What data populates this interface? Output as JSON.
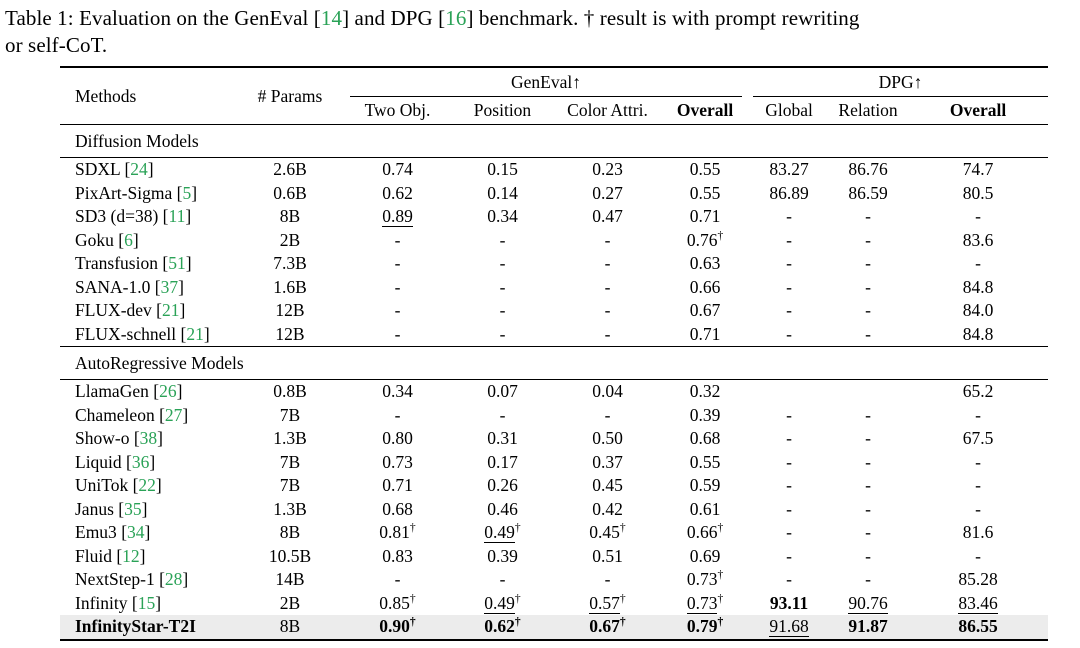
{
  "colors": {
    "citation_green": "#2aa257",
    "highlight_row_bg": "#ececec",
    "rule_color": "#000000"
  },
  "caption": {
    "segments": [
      {
        "t": "Table 1: Evaluation on the GenEval ["
      },
      {
        "t": "14",
        "green": true
      },
      {
        "t": "] and DPG ["
      },
      {
        "t": "16",
        "green": true
      },
      {
        "t": "] benchmark. † result is with prompt rewriting"
      },
      {
        "t": "or self-CoT.",
        "br": true
      }
    ]
  },
  "table": {
    "header": {
      "methods": "Methods",
      "params": "# Params",
      "groups": [
        {
          "label": "GenEval↑"
        },
        {
          "label": "DPG↑"
        }
      ],
      "subcolumns": [
        {
          "label": "Two Obj."
        },
        {
          "label": "Position"
        },
        {
          "label": "Color Attri."
        },
        {
          "label": "Overall",
          "b": true
        },
        {
          "label": "Global"
        },
        {
          "label": "Relation"
        },
        {
          "label": "Overall",
          "b": true
        }
      ]
    },
    "sections": [
      {
        "title": "Diffusion Models",
        "rows": [
          {
            "method": "SDXL",
            "cite": "24",
            "params": "2.6B",
            "values": [
              {
                "v": "0.74"
              },
              {
                "v": "0.15"
              },
              {
                "v": "0.23"
              },
              {
                "v": "0.55"
              },
              {
                "v": "83.27"
              },
              {
                "v": "86.76"
              },
              {
                "v": "74.7"
              }
            ]
          },
          {
            "method": "PixArt-Sigma",
            "cite": "5",
            "params": "0.6B",
            "values": [
              {
                "v": "0.62"
              },
              {
                "v": "0.14"
              },
              {
                "v": "0.27"
              },
              {
                "v": "0.55"
              },
              {
                "v": "86.89"
              },
              {
                "v": "86.59"
              },
              {
                "v": "80.5"
              }
            ]
          },
          {
            "method": "SD3 (d=38)",
            "cite": "11",
            "params": "8B",
            "values": [
              {
                "v": "0.89",
                "u": true
              },
              {
                "v": "0.34"
              },
              {
                "v": "0.47"
              },
              {
                "v": "0.71"
              },
              {
                "v": "-"
              },
              {
                "v": "-"
              },
              {
                "v": "-"
              }
            ]
          },
          {
            "method": "Goku",
            "cite": "6",
            "params": "2B",
            "values": [
              {
                "v": "-"
              },
              {
                "v": "-"
              },
              {
                "v": "-"
              },
              {
                "v": "0.76",
                "d": true
              },
              {
                "v": "-"
              },
              {
                "v": "-"
              },
              {
                "v": "83.6"
              }
            ]
          },
          {
            "method": "Transfusion",
            "cite": "51",
            "params": "7.3B",
            "values": [
              {
                "v": "-"
              },
              {
                "v": "-"
              },
              {
                "v": "-"
              },
              {
                "v": "0.63"
              },
              {
                "v": "-"
              },
              {
                "v": "-"
              },
              {
                "v": "-"
              }
            ]
          },
          {
            "method": "SANA-1.0",
            "cite": "37",
            "params": "1.6B",
            "values": [
              {
                "v": "-"
              },
              {
                "v": "-"
              },
              {
                "v": "-"
              },
              {
                "v": "0.66"
              },
              {
                "v": "-"
              },
              {
                "v": "-"
              },
              {
                "v": "84.8"
              }
            ]
          },
          {
            "method": "FLUX-dev",
            "cite": "21",
            "params": "12B",
            "values": [
              {
                "v": "-"
              },
              {
                "v": "-"
              },
              {
                "v": "-"
              },
              {
                "v": "0.67"
              },
              {
                "v": "-"
              },
              {
                "v": "-"
              },
              {
                "v": "84.0"
              }
            ]
          },
          {
            "method": "FLUX-schnell",
            "cite": "21",
            "params": "12B",
            "values": [
              {
                "v": "-"
              },
              {
                "v": "-"
              },
              {
                "v": "-"
              },
              {
                "v": "0.71"
              },
              {
                "v": "-"
              },
              {
                "v": "-"
              },
              {
                "v": "84.8"
              }
            ]
          }
        ]
      },
      {
        "title": "AutoRegressive Models",
        "rows": [
          {
            "method": "LlamaGen",
            "cite": "26",
            "params": "0.8B",
            "values": [
              {
                "v": "0.34"
              },
              {
                "v": "0.07"
              },
              {
                "v": "0.04"
              },
              {
                "v": "0.32"
              },
              {
                "v": ""
              },
              {
                "v": ""
              },
              {
                "v": "65.2"
              }
            ]
          },
          {
            "method": "Chameleon",
            "cite": "27",
            "params": "7B",
            "values": [
              {
                "v": "-"
              },
              {
                "v": "-"
              },
              {
                "v": "-"
              },
              {
                "v": "0.39"
              },
              {
                "v": "-"
              },
              {
                "v": "-"
              },
              {
                "v": "-"
              }
            ]
          },
          {
            "method": "Show-o",
            "cite": "38",
            "params": "1.3B",
            "values": [
              {
                "v": "0.80"
              },
              {
                "v": "0.31"
              },
              {
                "v": "0.50"
              },
              {
                "v": "0.68"
              },
              {
                "v": "-"
              },
              {
                "v": "-"
              },
              {
                "v": "67.5"
              }
            ]
          },
          {
            "method": "Liquid",
            "cite": "36",
            "params": "7B",
            "values": [
              {
                "v": "0.73"
              },
              {
                "v": "0.17"
              },
              {
                "v": "0.37"
              },
              {
                "v": "0.55"
              },
              {
                "v": "-"
              },
              {
                "v": "-"
              },
              {
                "v": "-"
              }
            ]
          },
          {
            "method": "UniTok",
            "cite": "22",
            "params": "7B",
            "values": [
              {
                "v": "0.71"
              },
              {
                "v": "0.26"
              },
              {
                "v": "0.45"
              },
              {
                "v": "0.59"
              },
              {
                "v": "-"
              },
              {
                "v": "-"
              },
              {
                "v": "-"
              }
            ]
          },
          {
            "method": "Janus",
            "cite": "35",
            "params": "1.3B",
            "values": [
              {
                "v": "0.68"
              },
              {
                "v": "0.46"
              },
              {
                "v": "0.42"
              },
              {
                "v": "0.61"
              },
              {
                "v": "-"
              },
              {
                "v": "-"
              },
              {
                "v": "-"
              }
            ]
          },
          {
            "method": "Emu3",
            "cite": "34",
            "params": "8B",
            "values": [
              {
                "v": "0.81",
                "d": true
              },
              {
                "v": "0.49",
                "d": true,
                "u": true
              },
              {
                "v": "0.45",
                "d": true
              },
              {
                "v": "0.66",
                "d": true
              },
              {
                "v": "-"
              },
              {
                "v": "-"
              },
              {
                "v": "81.6"
              }
            ]
          },
          {
            "method": "Fluid",
            "cite": "12",
            "params": "10.5B",
            "values": [
              {
                "v": "0.83"
              },
              {
                "v": "0.39"
              },
              {
                "v": "0.51"
              },
              {
                "v": "0.69"
              },
              {
                "v": "-"
              },
              {
                "v": "-"
              },
              {
                "v": "-"
              }
            ]
          },
          {
            "method": "NextStep-1",
            "cite": "28",
            "params": "14B",
            "values": [
              {
                "v": "-"
              },
              {
                "v": "-"
              },
              {
                "v": "-"
              },
              {
                "v": "0.73",
                "d": true
              },
              {
                "v": "-"
              },
              {
                "v": "-"
              },
              {
                "v": "85.28"
              }
            ]
          },
          {
            "method": "Infinity",
            "cite": "15",
            "params": "2B",
            "values": [
              {
                "v": "0.85",
                "d": true
              },
              {
                "v": "0.49",
                "d": true,
                "u": true
              },
              {
                "v": "0.57",
                "d": true,
                "u": true
              },
              {
                "v": "0.73",
                "d": true,
                "u": true
              },
              {
                "v": "93.11",
                "b": true
              },
              {
                "v": "90.76",
                "u": true
              },
              {
                "v": "83.46",
                "u": true
              }
            ]
          },
          {
            "method": "InfinityStar-T2I",
            "cite": "",
            "params": "8B",
            "bold_method": true,
            "highlight": true,
            "values": [
              {
                "v": "0.90",
                "b": true,
                "d": true
              },
              {
                "v": "0.62",
                "b": true,
                "d": true
              },
              {
                "v": "0.67",
                "b": true,
                "d": true
              },
              {
                "v": "0.79",
                "b": true,
                "d": true
              },
              {
                "v": "91.68",
                "u": true
              },
              {
                "v": "91.87",
                "b": true
              },
              {
                "v": "86.55",
                "b": true
              }
            ]
          }
        ]
      }
    ]
  }
}
